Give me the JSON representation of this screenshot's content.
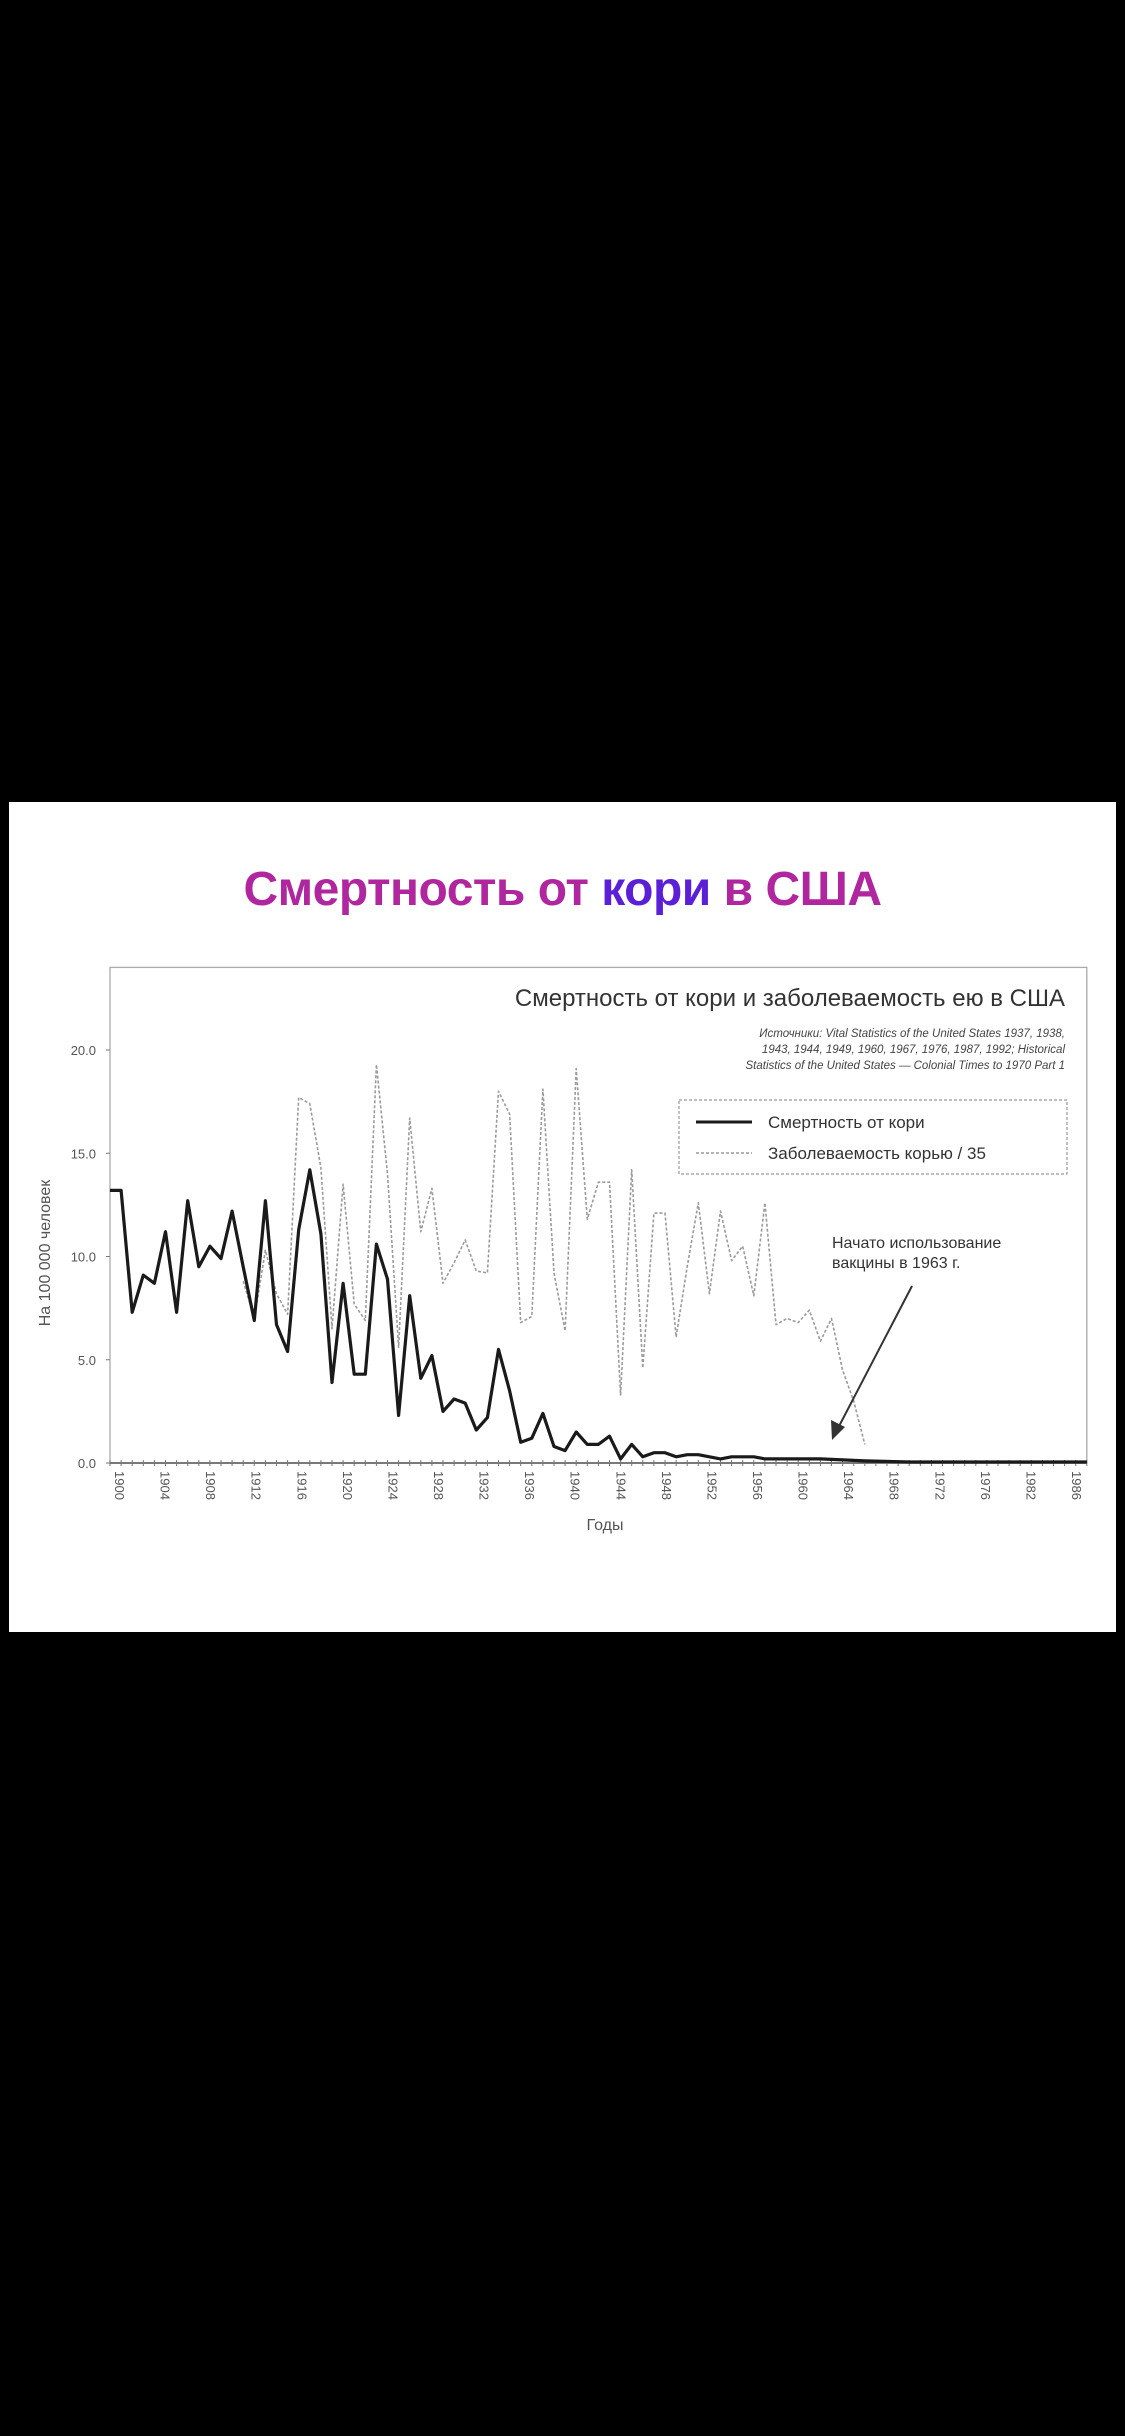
{
  "slide": {
    "title_part1": "Смертность от ",
    "title_highlight": "кори",
    "title_part2": " в США",
    "title_color": "#b0269e",
    "highlight_color": "#5a1fd6"
  },
  "chart_data": {
    "type": "line",
    "title": "Смертность от кори и заболеваемость ею в США",
    "source_lines": [
      "Источники: Vital Statistics of the United States 1937, 1938,",
      "1943, 1944, 1949, 1960, 1967, 1976, 1987, 1992; Historical",
      "Statistics of the United States — Colonial Times to 1970 Part 1"
    ],
    "xlabel": "Годы",
    "ylabel": "На 100 000 человек",
    "xlim": [
      1900,
      1988
    ],
    "ylim": [
      0,
      24
    ],
    "y_ticks": [
      "0.0",
      "5.0",
      "10.0",
      "15.0",
      "20.0"
    ],
    "x_ticks": [
      "1900",
      "1904",
      "1908",
      "1912",
      "1916",
      "1920",
      "1924",
      "1928",
      "1932",
      "1936",
      "1940",
      "1944",
      "1948",
      "1952",
      "1956",
      "1960",
      "1964",
      "1968",
      "1972",
      "1976",
      "1982",
      "1986"
    ],
    "legend_position": "top-right",
    "grid": false,
    "annotation": {
      "lines": [
        "Начато использование",
        "вакцины в 1963 г."
      ],
      "points_to_year": 1963
    },
    "series": [
      {
        "name": "Смертность от кори",
        "color": "#1a1a1a",
        "style": "solid",
        "x": [
          1900,
          1901,
          1902,
          1903,
          1904,
          1905,
          1906,
          1907,
          1908,
          1909,
          1910,
          1911,
          1912,
          1913,
          1914,
          1915,
          1916,
          1917,
          1918,
          1919,
          1920,
          1921,
          1922,
          1923,
          1924,
          1925,
          1926,
          1927,
          1928,
          1929,
          1930,
          1931,
          1932,
          1933,
          1934,
          1935,
          1936,
          1937,
          1938,
          1939,
          1940,
          1941,
          1942,
          1943,
          1944,
          1945,
          1946,
          1947,
          1948,
          1949,
          1950,
          1951,
          1952,
          1953,
          1954,
          1955,
          1956,
          1957,
          1958,
          1959,
          1960,
          1962,
          1964,
          1966,
          1968,
          1972,
          1976,
          1980,
          1984,
          1988
        ],
        "y": [
          13.2,
          13.2,
          7.3,
          9.1,
          8.7,
          11.2,
          7.3,
          12.7,
          9.5,
          10.5,
          9.9,
          12.2,
          9.5,
          6.9,
          12.7,
          6.7,
          5.4,
          11.3,
          14.2,
          11.1,
          3.9,
          8.7,
          4.3,
          4.3,
          10.6,
          8.9,
          2.3,
          8.1,
          4.1,
          5.2,
          2.5,
          3.1,
          2.9,
          1.6,
          2.2,
          5.5,
          3.5,
          1.0,
          1.2,
          2.4,
          0.8,
          0.6,
          1.5,
          0.9,
          0.9,
          1.3,
          0.2,
          0.9,
          0.3,
          0.5,
          0.5,
          0.3,
          0.4,
          0.4,
          0.3,
          0.2,
          0.3,
          0.3,
          0.3,
          0.2,
          0.2,
          0.2,
          0.2,
          0.15,
          0.1,
          0.05,
          0.05,
          0.05,
          0.05,
          0.05
        ]
      },
      {
        "name": "Заболеваемость корью / 35",
        "color": "#9a9a9a",
        "style": "dashed",
        "x": [
          1912,
          1913,
          1914,
          1915,
          1916,
          1917,
          1918,
          1919,
          1920,
          1921,
          1922,
          1923,
          1924,
          1925,
          1926,
          1927,
          1928,
          1929,
          1930,
          1931,
          1932,
          1933,
          1934,
          1935,
          1936,
          1937,
          1938,
          1939,
          1940,
          1941,
          1942,
          1943,
          1944,
          1945,
          1946,
          1947,
          1948,
          1949,
          1950,
          1951,
          1952,
          1953,
          1954,
          1955,
          1956,
          1957,
          1958,
          1959,
          1960,
          1961,
          1962,
          1963,
          1964,
          1965,
          1966,
          1967,
          1968
        ],
        "y": [
          8.8,
          7.0,
          10.3,
          8.2,
          7.2,
          17.7,
          17.4,
          14.3,
          6.5,
          13.5,
          7.7,
          6.9,
          19.3,
          14.0,
          5.6,
          16.7,
          11.2,
          13.3,
          8.7,
          9.7,
          10.8,
          9.3,
          9.2,
          18.0,
          16.9,
          6.8,
          7.1,
          18.1,
          9.2,
          6.4,
          19.1,
          11.8,
          13.6,
          13.6,
          3.3,
          14.2,
          4.6,
          12.1,
          12.1,
          6.1,
          9.5,
          12.6,
          8.2,
          12.2,
          9.8,
          10.5,
          8.1,
          12.6,
          6.7,
          7.0,
          6.8,
          7.4,
          5.9,
          7.0,
          4.5,
          3.0,
          0.9
        ]
      }
    ]
  }
}
